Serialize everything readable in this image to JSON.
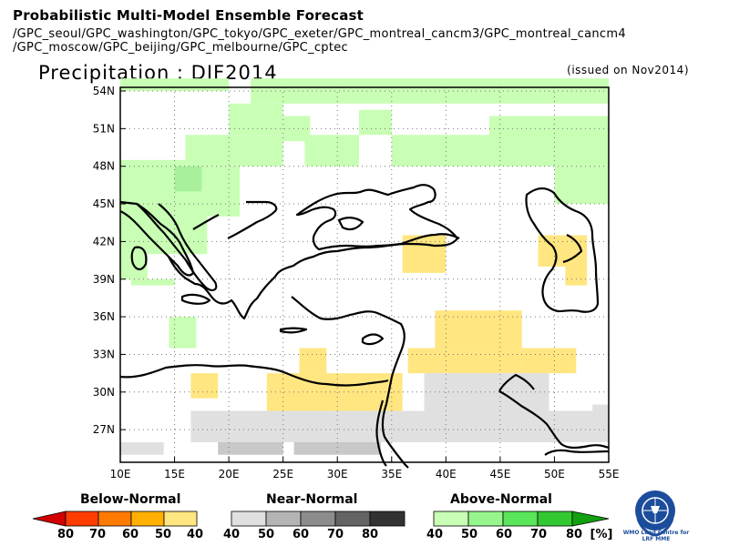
{
  "header": {
    "line1": "Probabilistic Multi-Model Ensemble Forecast",
    "line2": "/GPC_seoul/GPC_washington/GPC_tokyo/GPC_exeter/GPC_montreal_cancm3/GPC_montreal_cancm4",
    "line3": "/GPC_moscow/GPC_beijing/GPC_melbourne/GPC_cptec",
    "title": "Precipitation : DJF2014",
    "issued": "(issued on Nov2014)"
  },
  "map": {
    "lon_labels": [
      "10E",
      "15E",
      "20E",
      "25E",
      "30E",
      "35E",
      "40E",
      "45E",
      "50E",
      "55E"
    ],
    "lat_labels": [
      "54N",
      "51N",
      "48N",
      "45N",
      "42N",
      "39N",
      "36N",
      "33N",
      "30N",
      "27N"
    ]
  },
  "legend": {
    "below": {
      "label": "Below-Normal",
      "ticks": [
        "80",
        "70",
        "60",
        "50",
        "40"
      ],
      "colors": [
        "#d20000",
        "#ff3d00",
        "#ff7a00",
        "#ffb000",
        "#ffe680"
      ]
    },
    "near": {
      "label": "Near-Normal",
      "ticks": [
        "40",
        "50",
        "60",
        "70",
        "80"
      ],
      "colors": [
        "#e0e0e0",
        "#b4b4b4",
        "#8c8c8c",
        "#646464",
        "#323232"
      ]
    },
    "above": {
      "label": "Above-Normal",
      "ticks": [
        "40",
        "50",
        "60",
        "70",
        "80"
      ],
      "colors": [
        "#c8ffb4",
        "#96f58c",
        "#5ae65a",
        "#32c832",
        "#10a010"
      ]
    },
    "unit": "[%]"
  },
  "logo": {
    "text": "WMO Lead Centre for LRF MME"
  }
}
